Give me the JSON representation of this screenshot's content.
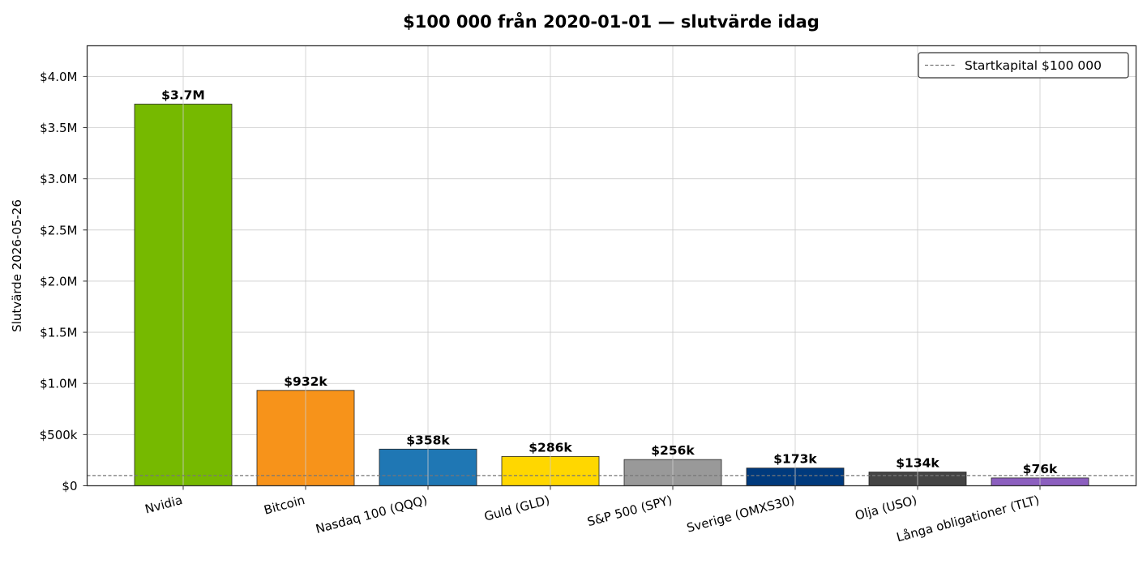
{
  "chart_data": {
    "type": "bar",
    "title": "$100 000 från 2020-01-01 — slutvärde idag",
    "xlabel": "",
    "ylabel": "Slutvärde 2026-05-26",
    "ylim": [
      0,
      4300000
    ],
    "yticks": [
      {
        "value": 0,
        "label": "$0"
      },
      {
        "value": 500000,
        "label": "$500k"
      },
      {
        "value": 1000000,
        "label": "$1.0M"
      },
      {
        "value": 1500000,
        "label": "$1.5M"
      },
      {
        "value": 2000000,
        "label": "$2.0M"
      },
      {
        "value": 2500000,
        "label": "$2.5M"
      },
      {
        "value": 3000000,
        "label": "$3.0M"
      },
      {
        "value": 3500000,
        "label": "$3.5M"
      },
      {
        "value": 4000000,
        "label": "$4.0M"
      }
    ],
    "categories": [
      "Nvidia",
      "Bitcoin",
      "Nasdaq 100 (QQQ)",
      "Guld (GLD)",
      "S&P 500 (SPY)",
      "Sverige (OMXS30)",
      "Olja (USO)",
      "Långa obligationer (TLT)"
    ],
    "values": [
      3730000,
      932000,
      358000,
      286000,
      256000,
      173000,
      134000,
      76000
    ],
    "data_labels": [
      "$3.7M",
      "$932k",
      "$358k",
      "$286k",
      "$256k",
      "$173k",
      "$134k",
      "$76k"
    ],
    "colors": [
      "#76b900",
      "#f7931a",
      "#1f77b4",
      "#ffd700",
      "#999999",
      "#003a7d",
      "#444444",
      "#8c5fbf"
    ],
    "reference_line": {
      "value": 100000,
      "label": "Startkapital $100 000",
      "style": "dashed",
      "color": "#777777"
    },
    "grid": true,
    "legend_position": "top-right"
  }
}
